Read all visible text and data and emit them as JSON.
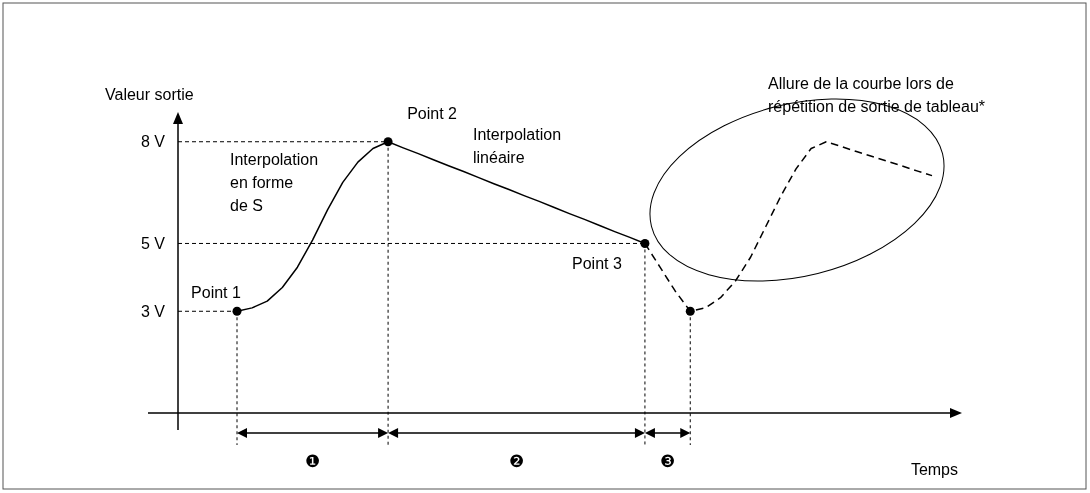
{
  "chart_data": {
    "type": "line",
    "ylabel": "Valeur sortie",
    "xlabel": "Temps",
    "ylim": [
      0,
      8.7
    ],
    "categories": [
      null,
      null,
      null,
      null,
      null,
      null,
      null,
      null,
      null,
      null,
      null,
      null,
      null,
      null,
      null,
      null,
      null,
      null,
      null,
      null,
      null,
      null,
      null,
      null,
      null,
      null,
      null,
      null,
      null,
      null,
      null,
      null,
      null,
      null,
      null,
      null,
      null,
      null,
      null,
      null,
      null,
      null,
      null,
      null,
      null,
      null,
      null
    ],
    "yticks": [
      {
        "value": 3,
        "label": "3 V"
      },
      {
        "value": 5,
        "label": "5 V"
      },
      {
        "value": 8,
        "label": "8 V"
      }
    ],
    "tick_labels": "y",
    "ref_lines": [
      {
        "axis": "y",
        "value": 5,
        "line_style": "dashed"
      },
      {
        "axis": "y",
        "value": 8,
        "line_style": "dashed"
      }
    ],
    "series": [
      {
        "color": "#000000",
        "line_style": "solid",
        "values": [
          3,
          3.1,
          3.3,
          3.7,
          4.3,
          5.1,
          6.0,
          6.8,
          7.4,
          7.8,
          8,
          7.82,
          7.65,
          7.47,
          7.29,
          7.12,
          6.94,
          6.76,
          6.59,
          6.41,
          6.24,
          6.06,
          5.88,
          5.71,
          5.53,
          5.35,
          5.18,
          5,
          null,
          null,
          null,
          null,
          null,
          null,
          null,
          null,
          null,
          null,
          null,
          null,
          null,
          null,
          null,
          null,
          null,
          null,
          null
        ]
      },
      {
        "color": "#000000",
        "line_style": "dashed",
        "values": [
          null,
          null,
          null,
          null,
          null,
          null,
          null,
          null,
          null,
          null,
          null,
          null,
          null,
          null,
          null,
          null,
          null,
          null,
          null,
          null,
          null,
          null,
          null,
          null,
          null,
          null,
          null,
          5,
          4.3,
          3.6,
          3,
          3.1,
          3.4,
          3.9,
          4.6,
          5.5,
          6.4,
          7.2,
          7.8,
          8,
          7.86,
          7.71,
          7.57,
          7.43,
          7.29,
          7.14,
          7
        ]
      },
      {
        "type": "scatter",
        "color": "#000000",
        "marker": "circle",
        "values": [
          3,
          null,
          null,
          null,
          null,
          null,
          null,
          null,
          null,
          null,
          8,
          null,
          null,
          null,
          null,
          null,
          null,
          null,
          null,
          null,
          null,
          null,
          null,
          null,
          null,
          null,
          null,
          5,
          null,
          null,
          3,
          null,
          null,
          null,
          null,
          null,
          null,
          null,
          null,
          null,
          null,
          null,
          null,
          null,
          null,
          null,
          null
        ]
      }
    ],
    "annotations": [
      "Point 1",
      "Point 2",
      "Point 3",
      "Interpolation\nen forme\nde S",
      "Interpolation\nlinéaire",
      "Allure de la courbe lors de\nrépétition de sortie de tableau*",
      "❶",
      "❷",
      "❸"
    ]
  }
}
